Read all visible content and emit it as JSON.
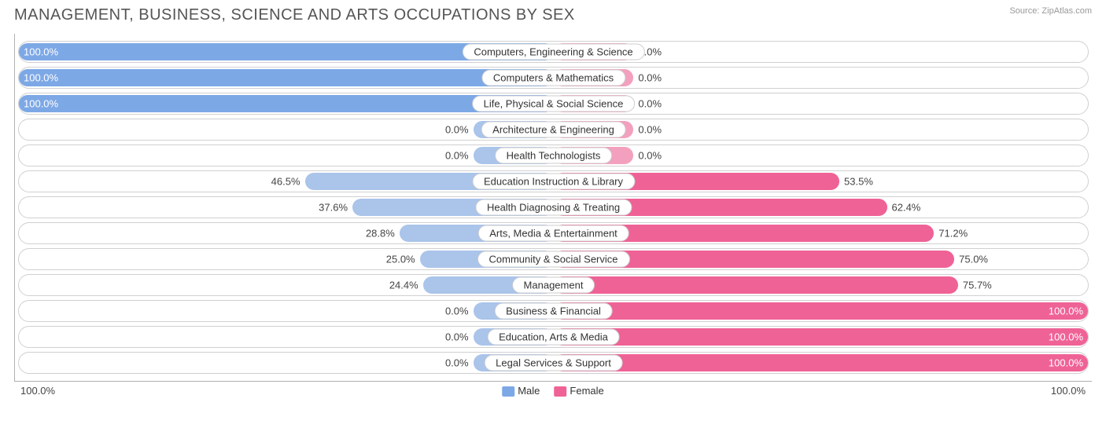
{
  "title": "MANAGEMENT, BUSINESS, SCIENCE AND ARTS OCCUPATIONS BY SEX",
  "source": "Source: ZipAtlas.com",
  "colors": {
    "male_fill": "#7da8e6",
    "male_fill_faded": "#aac4ea",
    "female_fill": "#ef6296",
    "female_fill_faded": "#f3a0be",
    "border": "#d0d0d0",
    "axis": "#b0b0b0",
    "text": "#444444"
  },
  "legend": {
    "male": "Male",
    "female": "Female"
  },
  "axis": {
    "left": "100.0%",
    "right": "100.0%"
  },
  "rows": [
    {
      "category": "Computers, Engineering & Science",
      "male": 100.0,
      "female": 0.0,
      "male_label": "100.0%",
      "female_label": "0.0%",
      "male_faded": false,
      "female_faded": true
    },
    {
      "category": "Computers & Mathematics",
      "male": 100.0,
      "female": 0.0,
      "male_label": "100.0%",
      "female_label": "0.0%",
      "male_faded": false,
      "female_faded": true
    },
    {
      "category": "Life, Physical & Social Science",
      "male": 100.0,
      "female": 0.0,
      "male_label": "100.0%",
      "female_label": "0.0%",
      "male_faded": false,
      "female_faded": true
    },
    {
      "category": "Architecture & Engineering",
      "male": 0.0,
      "female": 0.0,
      "male_label": "0.0%",
      "female_label": "0.0%",
      "male_faded": true,
      "female_faded": true
    },
    {
      "category": "Health Technologists",
      "male": 0.0,
      "female": 0.0,
      "male_label": "0.0%",
      "female_label": "0.0%",
      "male_faded": true,
      "female_faded": true
    },
    {
      "category": "Education Instruction & Library",
      "male": 46.5,
      "female": 53.5,
      "male_label": "46.5%",
      "female_label": "53.5%",
      "male_faded": true,
      "female_faded": false
    },
    {
      "category": "Health Diagnosing & Treating",
      "male": 37.6,
      "female": 62.4,
      "male_label": "37.6%",
      "female_label": "62.4%",
      "male_faded": true,
      "female_faded": false
    },
    {
      "category": "Arts, Media & Entertainment",
      "male": 28.8,
      "female": 71.2,
      "male_label": "28.8%",
      "female_label": "71.2%",
      "male_faded": true,
      "female_faded": false
    },
    {
      "category": "Community & Social Service",
      "male": 25.0,
      "female": 75.0,
      "male_label": "25.0%",
      "female_label": "75.0%",
      "male_faded": true,
      "female_faded": false
    },
    {
      "category": "Management",
      "male": 24.4,
      "female": 75.7,
      "male_label": "24.4%",
      "female_label": "75.7%",
      "male_faded": true,
      "female_faded": false
    },
    {
      "category": "Business & Financial",
      "male": 0.0,
      "female": 100.0,
      "male_label": "0.0%",
      "female_label": "100.0%",
      "male_faded": true,
      "female_faded": false
    },
    {
      "category": "Education, Arts & Media",
      "male": 0.0,
      "female": 100.0,
      "male_label": "0.0%",
      "female_label": "100.0%",
      "male_faded": true,
      "female_faded": false
    },
    {
      "category": "Legal Services & Support",
      "male": 0.0,
      "female": 100.0,
      "male_label": "0.0%",
      "female_label": "100.0%",
      "male_faded": true,
      "female_faded": false
    }
  ],
  "stub_width_pct": 15
}
